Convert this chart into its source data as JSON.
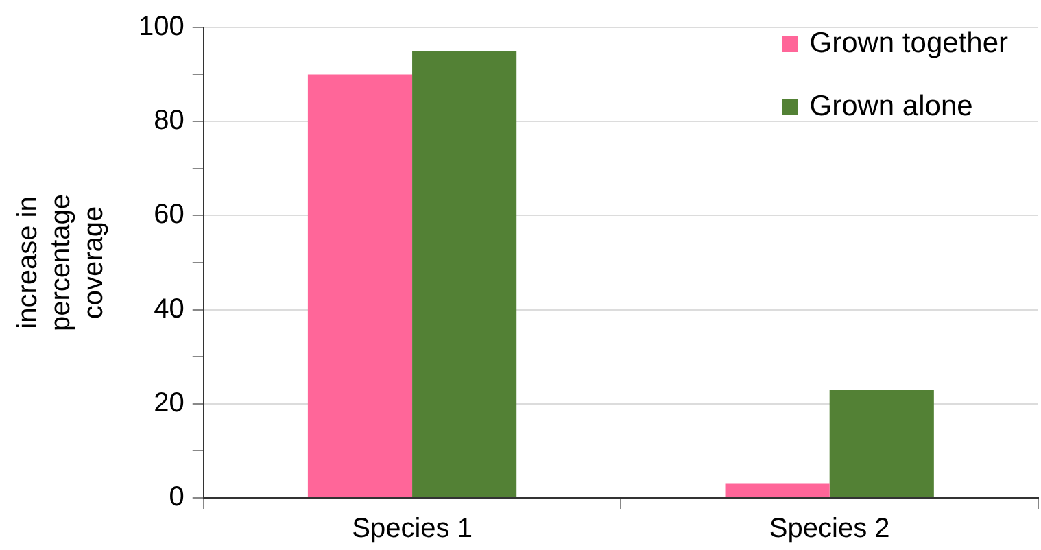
{
  "chart_data": {
    "type": "bar",
    "ylabel": "increase in percentage coverage",
    "categories": [
      "Species 1",
      "Species 2"
    ],
    "series": [
      {
        "name": "Grown together",
        "color": "#ff6699",
        "values": [
          90,
          3
        ]
      },
      {
        "name": "Grown alone",
        "color": "#538135",
        "values": [
          95,
          23
        ]
      }
    ],
    "ylim": [
      0,
      100
    ],
    "yticks": [
      0,
      {
        "value": 10,
        "label": null
      },
      20,
      {
        "value": 30,
        "label": null
      },
      40,
      {
        "value": 50,
        "label": null
      },
      60,
      {
        "value": 70,
        "label": null
      },
      80,
      {
        "value": 90,
        "label": null
      },
      100
    ],
    "grid": "y",
    "legend": "top right"
  }
}
